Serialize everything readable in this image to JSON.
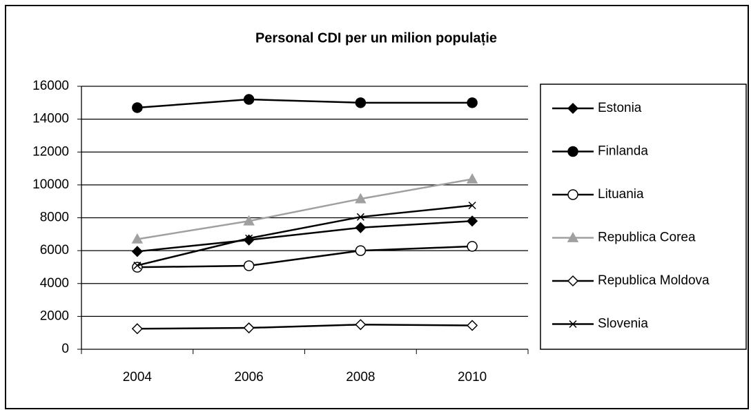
{
  "chart_data": {
    "type": "line",
    "title": "Personal CDI per un milion populație",
    "categories": [
      "2004",
      "2006",
      "2008",
      "2010"
    ],
    "series": [
      {
        "name": "Estonia",
        "color": "#000000",
        "marker": "diamond",
        "values": [
          5950,
          6650,
          7400,
          7800
        ]
      },
      {
        "name": "Finlanda",
        "color": "#000000",
        "marker": "circle",
        "values": [
          14700,
          15200,
          15000,
          15000
        ]
      },
      {
        "name": "Lituania",
        "color": "#000000",
        "marker": "square",
        "values": [
          4990,
          5080,
          6000,
          6260
        ]
      },
      {
        "name": "Republica Corea",
        "color": "#a0a0a0",
        "marker": "triangle",
        "values": [
          6700,
          7800,
          9150,
          10350
        ]
      },
      {
        "name": "Republica Moldova",
        "color": "#000000",
        "marker": "diamond-open",
        "values": [
          1250,
          1300,
          1500,
          1450
        ]
      },
      {
        "name": "Slovenia",
        "color": "#000000",
        "marker": "x",
        "values": [
          5100,
          6750,
          8050,
          8750
        ]
      }
    ],
    "ylim": [
      0,
      16000
    ],
    "yticks": [
      0,
      2000,
      4000,
      6000,
      8000,
      10000,
      12000,
      14000,
      16000
    ],
    "grid": true,
    "legend": "right"
  }
}
